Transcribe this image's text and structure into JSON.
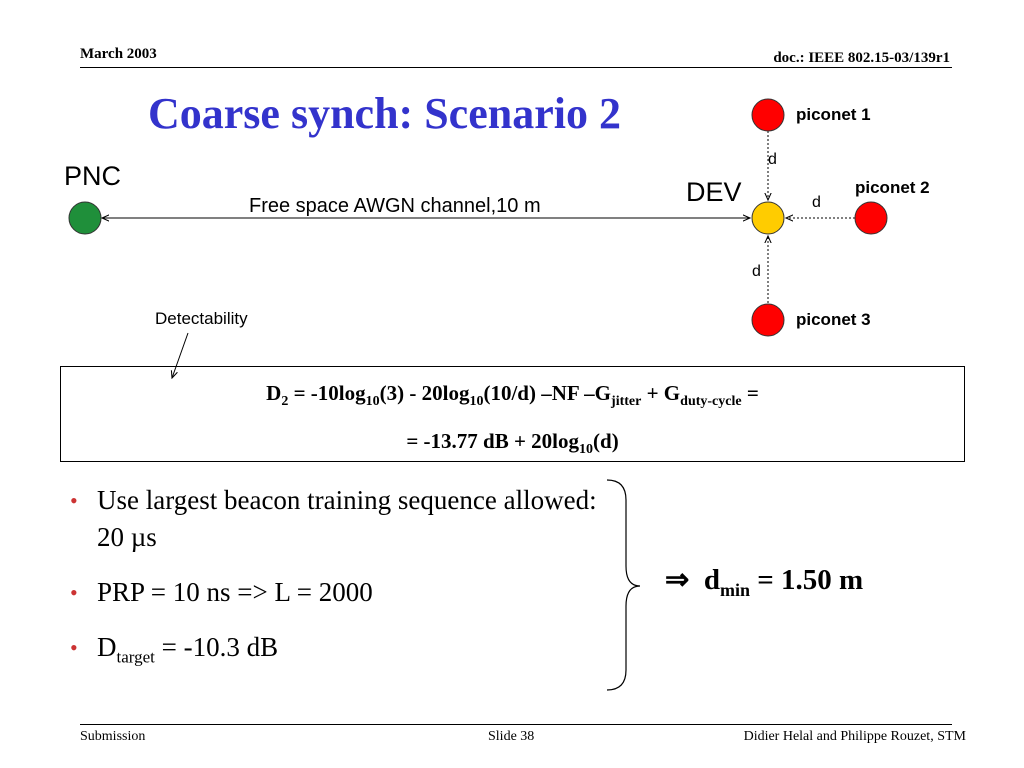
{
  "header": {
    "date": "March 2003",
    "doc_id": "doc.: IEEE 802.15-03/139r1"
  },
  "title": "Coarse synch: Scenario 2",
  "diagram": {
    "pnc_label": "PNC",
    "dev_label": "DEV",
    "channel_label": "Free space AWGN channel,10 m",
    "piconet1_label": "piconet 1",
    "piconet2_label": "piconet 2",
    "piconet3_label": "piconet 3",
    "distance_label": "d",
    "pnc_color": "#1f8f3a",
    "dev_color": "#ffcc00",
    "piconet_color": "#ff0000"
  },
  "detectability_label": "Detectability",
  "formula": {
    "line1": {
      "D": "D",
      "D_sub": "2",
      "a": " = -10log",
      "a_sub": "10",
      "b": "(3) - 20log",
      "b_sub": "10",
      "c": "(10/d) –NF –G",
      "c_sub": "jitter",
      "d": " + G",
      "d_sub": "duty-cycle",
      "e": " ="
    },
    "line2": {
      "a": "= -13.77 dB + 20log",
      "a_sub": "10",
      "b": "(d)"
    }
  },
  "bullets": {
    "b1": {
      "text": "Use largest beacon training sequence allowed: 20 µs"
    },
    "b2": {
      "text": "PRP = 10 ns => L = 2000"
    },
    "b3": {
      "pre": "D",
      "sub": "target",
      "post": " = -10.3 dB"
    }
  },
  "result": {
    "arrow": "⇒",
    "d": "d",
    "sub": "min",
    "post": " = 1.50 m"
  },
  "footer": {
    "left": "Submission",
    "center": "Slide 38",
    "right": "Didier Helal and Philippe Rouzet, STM"
  }
}
